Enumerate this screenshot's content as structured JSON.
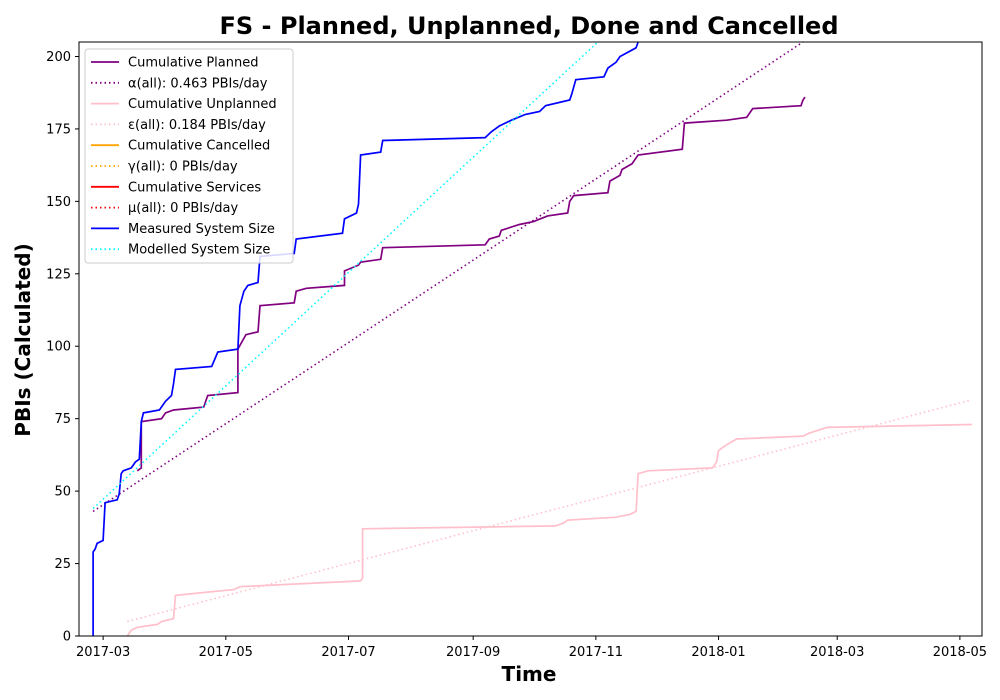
{
  "chart_data": {
    "type": "line",
    "title": "FS - Planned, Unplanned, Done  and Cancelled",
    "xlabel": "Time",
    "ylabel": "PBIs (Calculated)",
    "xlim": [
      "2017-02-17",
      "2018-05-12"
    ],
    "ylim": [
      0,
      205
    ],
    "x_ticks": [
      "2017-03",
      "2017-05",
      "2017-07",
      "2017-09",
      "2017-11",
      "2018-01",
      "2018-03",
      "2018-05"
    ],
    "y_ticks": [
      0,
      25,
      50,
      75,
      100,
      125,
      150,
      175,
      200
    ],
    "grid": false,
    "legend_position": "top-left",
    "colors": {
      "planned": "#800080",
      "unplanned": "#ffc0cb",
      "cancelled": "#ffa500",
      "services": "#ff0000",
      "measured": "#0000ff",
      "modelled": "#00ffff"
    },
    "legend": [
      {
        "label": "Cumulative Planned",
        "color": "#800080",
        "style": "solid"
      },
      {
        "label": "α(all): 0.463 PBIs/day",
        "color": "#800080",
        "style": "dotted"
      },
      {
        "label": "Cumulative Unplanned",
        "color": "#ffc0cb",
        "style": "solid"
      },
      {
        "label": "ε(all): 0.184 PBIs/day",
        "color": "#ffc0cb",
        "style": "dotted"
      },
      {
        "label": "Cumulative Cancelled",
        "color": "#ffa500",
        "style": "solid"
      },
      {
        "label": "γ(all): 0 PBIs/day",
        "color": "#ffa500",
        "style": "dotted"
      },
      {
        "label": "Cumulative Services",
        "color": "#ff0000",
        "style": "solid"
      },
      {
        "label": "μ(all): 0 PBIs/day",
        "color": "#ff0000",
        "style": "dotted"
      },
      {
        "label": "Measured System Size",
        "color": "#0000ff",
        "style": "solid"
      },
      {
        "label": "Modelled System Size",
        "color": "#00ffff",
        "style": "dotted"
      }
    ],
    "series": [
      {
        "name": "Cumulative Planned",
        "color": "#800080",
        "style": "solid",
        "points": [
          [
            "2017-03-18",
            57
          ],
          [
            "2017-03-20",
            58
          ],
          [
            "2017-03-20",
            74
          ],
          [
            "2017-03-30",
            75
          ],
          [
            "2017-04-01",
            77
          ],
          [
            "2017-04-05",
            78
          ],
          [
            "2017-04-20",
            79
          ],
          [
            "2017-04-22",
            83
          ],
          [
            "2017-05-07",
            84
          ],
          [
            "2017-05-07",
            99
          ],
          [
            "2017-05-11",
            104
          ],
          [
            "2017-05-17",
            105
          ],
          [
            "2017-05-18",
            114
          ],
          [
            "2017-06-04",
            115
          ],
          [
            "2017-06-05",
            119
          ],
          [
            "2017-06-10",
            120
          ],
          [
            "2017-06-29",
            121
          ],
          [
            "2017-06-29",
            126
          ],
          [
            "2017-07-06",
            128
          ],
          [
            "2017-07-07",
            129
          ],
          [
            "2017-07-17",
            130
          ],
          [
            "2017-07-18",
            134
          ],
          [
            "2017-09-07",
            135
          ],
          [
            "2017-09-09",
            137
          ],
          [
            "2017-09-14",
            138
          ],
          [
            "2017-09-15",
            140
          ],
          [
            "2017-09-24",
            142
          ],
          [
            "2017-10-01",
            143
          ],
          [
            "2017-10-08",
            145
          ],
          [
            "2017-10-18",
            146
          ],
          [
            "2017-10-19",
            150
          ],
          [
            "2017-10-21",
            152
          ],
          [
            "2017-11-07",
            153
          ],
          [
            "2017-11-08",
            157
          ],
          [
            "2017-11-13",
            159
          ],
          [
            "2017-11-14",
            161
          ],
          [
            "2017-11-19",
            163
          ],
          [
            "2017-11-22",
            166
          ],
          [
            "2017-12-14",
            168
          ],
          [
            "2017-12-15",
            177
          ],
          [
            "2018-01-05",
            178
          ],
          [
            "2018-01-15",
            179
          ],
          [
            "2018-01-18",
            182
          ],
          [
            "2018-02-11",
            183
          ],
          [
            "2018-02-12",
            185
          ],
          [
            "2018-02-13",
            186
          ]
        ]
      },
      {
        "name": "α(all): 0.463 PBIs/day",
        "color": "#800080",
        "style": "dotted",
        "points": [
          [
            "2017-02-24",
            43
          ],
          [
            "2018-02-12",
            205
          ]
        ]
      },
      {
        "name": "Cumulative Unplanned",
        "color": "#ffc0cb",
        "style": "solid",
        "points": [
          [
            "2017-03-13",
            0
          ],
          [
            "2017-03-15",
            2
          ],
          [
            "2017-03-18",
            3
          ],
          [
            "2017-03-28",
            4
          ],
          [
            "2017-03-30",
            5
          ],
          [
            "2017-04-05",
            6
          ],
          [
            "2017-04-06",
            14
          ],
          [
            "2017-04-20",
            15
          ],
          [
            "2017-05-05",
            16
          ],
          [
            "2017-05-08",
            17
          ],
          [
            "2017-07-07",
            19
          ],
          [
            "2017-07-08",
            20
          ],
          [
            "2017-07-08",
            37
          ],
          [
            "2017-10-12",
            38
          ],
          [
            "2017-10-16",
            39
          ],
          [
            "2017-10-18",
            40
          ],
          [
            "2017-11-11",
            41
          ],
          [
            "2017-11-18",
            42
          ],
          [
            "2017-11-21",
            43
          ],
          [
            "2017-11-22",
            56
          ],
          [
            "2017-11-27",
            57
          ],
          [
            "2017-12-29",
            58
          ],
          [
            "2017-12-31",
            60
          ],
          [
            "2018-01-01",
            64
          ],
          [
            "2018-01-05",
            66
          ],
          [
            "2018-01-10",
            68
          ],
          [
            "2018-02-12",
            69
          ],
          [
            "2018-02-15",
            70
          ],
          [
            "2018-02-24",
            72
          ],
          [
            "2018-05-07",
            73
          ]
        ]
      },
      {
        "name": "ε(all): 0.184 PBIs/day",
        "color": "#ffc0cb",
        "style": "dotted",
        "points": [
          [
            "2017-03-13",
            5
          ],
          [
            "2018-05-07",
            81.5
          ]
        ]
      },
      {
        "name": "Measured System Size",
        "color": "#0000ff",
        "style": "solid",
        "points": [
          [
            "2017-02-24",
            0
          ],
          [
            "2017-02-24",
            29
          ],
          [
            "2017-02-25",
            30
          ],
          [
            "2017-02-26",
            32
          ],
          [
            "2017-03-01",
            33
          ],
          [
            "2017-03-02",
            46
          ],
          [
            "2017-03-08",
            47
          ],
          [
            "2017-03-09",
            49
          ],
          [
            "2017-03-10",
            56
          ],
          [
            "2017-03-11",
            57
          ],
          [
            "2017-03-15",
            58
          ],
          [
            "2017-03-17",
            60
          ],
          [
            "2017-03-19",
            61
          ],
          [
            "2017-03-20",
            74
          ],
          [
            "2017-03-21",
            77
          ],
          [
            "2017-03-29",
            78
          ],
          [
            "2017-04-01",
            81
          ],
          [
            "2017-04-04",
            83
          ],
          [
            "2017-04-05",
            87
          ],
          [
            "2017-04-06",
            92
          ],
          [
            "2017-04-24",
            93
          ],
          [
            "2017-04-27",
            98
          ],
          [
            "2017-05-07",
            99
          ],
          [
            "2017-05-08",
            114
          ],
          [
            "2017-05-10",
            119
          ],
          [
            "2017-05-12",
            121
          ],
          [
            "2017-05-17",
            122
          ],
          [
            "2017-05-18",
            131
          ],
          [
            "2017-06-04",
            132
          ],
          [
            "2017-06-05",
            137
          ],
          [
            "2017-06-28",
            139
          ],
          [
            "2017-06-29",
            144
          ],
          [
            "2017-07-05",
            146
          ],
          [
            "2017-07-06",
            149
          ],
          [
            "2017-07-07",
            166
          ],
          [
            "2017-07-17",
            167
          ],
          [
            "2017-07-18",
            171
          ],
          [
            "2017-09-07",
            172
          ],
          [
            "2017-09-10",
            174
          ],
          [
            "2017-09-14",
            176
          ],
          [
            "2017-09-20",
            178
          ],
          [
            "2017-09-27",
            180
          ],
          [
            "2017-10-04",
            181
          ],
          [
            "2017-10-07",
            183
          ],
          [
            "2017-10-19",
            185
          ],
          [
            "2017-10-20",
            187
          ],
          [
            "2017-10-22",
            192
          ],
          [
            "2017-11-05",
            193
          ],
          [
            "2017-11-07",
            196
          ],
          [
            "2017-11-11",
            198
          ],
          [
            "2017-11-13",
            200
          ],
          [
            "2017-11-21",
            203
          ],
          [
            "2017-11-22",
            205
          ]
        ]
      },
      {
        "name": "Modelled System Size",
        "color": "#00ffff",
        "style": "dotted",
        "points": [
          [
            "2017-02-24",
            44
          ],
          [
            "2017-11-02",
            205
          ]
        ]
      }
    ]
  }
}
